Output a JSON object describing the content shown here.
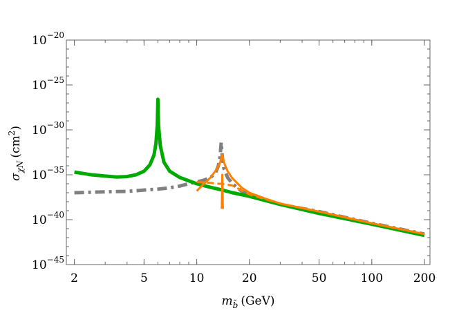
{
  "chart_data": {
    "type": "line",
    "title": "",
    "xlabel": {
      "var": "m",
      "var_sub": "b̃",
      "unit": "(GeV)"
    },
    "ylabel": {
      "var": "σ",
      "var_sub": "χN",
      "unit_open": "(cm",
      "unit_sup": "2",
      "unit_close": ")"
    },
    "x_scale": "log",
    "y_scale": "log",
    "xlim": [
      1.8,
      215
    ],
    "ylim_exp": [
      -45,
      -20
    ],
    "x_ticks": [
      {
        "value": 2,
        "label": "2"
      },
      {
        "value": 5,
        "label": "5"
      },
      {
        "value": 10,
        "label": "10"
      },
      {
        "value": 20,
        "label": "20"
      },
      {
        "value": 50,
        "label": "50"
      },
      {
        "value": 100,
        "label": "100"
      },
      {
        "value": 200,
        "label": "200"
      }
    ],
    "y_ticks": [
      {
        "exp": -20,
        "base": "10",
        "sup": "−20"
      },
      {
        "exp": -25,
        "base": "10",
        "sup": "−25"
      },
      {
        "exp": -30,
        "base": "10",
        "sup": "−30"
      },
      {
        "exp": -35,
        "base": "10",
        "sup": "−35"
      },
      {
        "exp": -40,
        "base": "10",
        "sup": "−40"
      },
      {
        "exp": -45,
        "base": "10",
        "sup": "−45"
      }
    ],
    "grid": false,
    "legend": "none",
    "series": [
      {
        "style": "dash-dot",
        "color": "#808080",
        "width": 5,
        "points": [
          [
            2.0,
            -37.0
          ],
          [
            3,
            -36.9
          ],
          [
            4,
            -36.85
          ],
          [
            5,
            -36.7
          ],
          [
            6,
            -36.6
          ],
          [
            7,
            -36.45
          ],
          [
            8,
            -36.25
          ],
          [
            9,
            -36.0
          ],
          [
            10,
            -35.8
          ],
          [
            11,
            -35.6
          ],
          [
            12,
            -35.3
          ],
          [
            12.8,
            -34.8
          ],
          [
            13.3,
            -34.0
          ],
          [
            13.6,
            -33.0
          ],
          [
            13.8,
            -31.4
          ],
          [
            14.0,
            -33.0
          ],
          [
            14.3,
            -34.3
          ],
          [
            15,
            -35.3
          ],
          [
            16,
            -36.0
          ],
          [
            18,
            -36.8
          ],
          [
            20,
            -37.3
          ],
          [
            25,
            -37.9
          ],
          [
            30,
            -38.3
          ],
          [
            50,
            -39.1
          ],
          [
            100,
            -40.4
          ],
          [
            200,
            -41.6
          ]
        ]
      },
      {
        "style": "solid",
        "color": "#00aa00",
        "width": 5,
        "points": [
          [
            2.0,
            -34.7
          ],
          [
            2.5,
            -35.0
          ],
          [
            3,
            -35.15
          ],
          [
            3.5,
            -35.25
          ],
          [
            4,
            -35.2
          ],
          [
            4.5,
            -35.0
          ],
          [
            5.0,
            -34.6
          ],
          [
            5.4,
            -33.9
          ],
          [
            5.7,
            -32.8
          ],
          [
            5.85,
            -31.5
          ],
          [
            5.95,
            -29.5
          ],
          [
            6.0,
            -26.6
          ],
          [
            6.05,
            -29.5
          ],
          [
            6.2,
            -31.8
          ],
          [
            6.5,
            -33.6
          ],
          [
            7,
            -34.6
          ],
          [
            8,
            -35.3
          ],
          [
            10,
            -36.0
          ],
          [
            12,
            -36.4
          ],
          [
            14,
            -36.7
          ],
          [
            16,
            -37.0
          ],
          [
            20,
            -37.4
          ],
          [
            30,
            -38.3
          ],
          [
            50,
            -39.3
          ],
          [
            100,
            -40.5
          ],
          [
            200,
            -41.75
          ]
        ]
      },
      {
        "style": "dashed",
        "color": "#ff8000",
        "width": 3,
        "points": [
          [
            10,
            -35.8
          ],
          [
            12,
            -35.9
          ],
          [
            13,
            -36.0
          ],
          [
            14,
            -36.0
          ],
          [
            16,
            -36.2
          ],
          [
            20,
            -37.2
          ],
          [
            30,
            -38.2
          ],
          [
            50,
            -39.1
          ],
          [
            100,
            -40.4
          ],
          [
            200,
            -41.6
          ]
        ]
      },
      {
        "style": "solid",
        "color": "#ff8000",
        "width": 3,
        "points": [
          [
            10,
            -36.8
          ],
          [
            11,
            -36.0
          ],
          [
            12,
            -35.3
          ],
          [
            13,
            -34.4
          ],
          [
            13.6,
            -33.6
          ],
          [
            14.0,
            -32.8
          ],
          [
            14.3,
            -33.6
          ],
          [
            15,
            -34.6
          ],
          [
            16,
            -35.4
          ],
          [
            18,
            -36.4
          ],
          [
            20,
            -37.0
          ],
          [
            25,
            -37.7
          ],
          [
            30,
            -38.2
          ],
          [
            50,
            -39.1
          ],
          [
            100,
            -40.4
          ],
          [
            200,
            -41.6
          ]
        ]
      },
      {
        "style": "solid",
        "color": "#ff8000",
        "width": 3,
        "points": [
          [
            13.9,
            -38.8
          ],
          [
            13.95,
            -37.0
          ],
          [
            14.0,
            -35.0
          ],
          [
            14.05,
            -37.0
          ],
          [
            14.1,
            -38.8
          ]
        ]
      }
    ]
  }
}
